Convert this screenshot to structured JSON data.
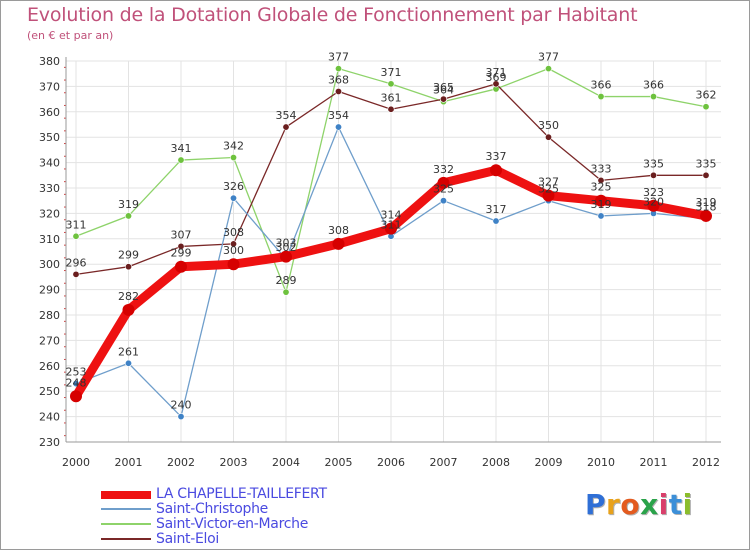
{
  "header": {
    "title": "Evolution de la Dotation Globale de Fonctionnement par Habitant",
    "subtitle": "(en € et par an)"
  },
  "brand": {
    "letters": [
      "P",
      "r",
      "o",
      "x",
      "i",
      "t",
      "i"
    ],
    "colors": [
      "#2f6fd6",
      "#e8a21c",
      "#e35b1f",
      "#2aa34a",
      "#d93f6b",
      "#3c8fd8",
      "#8bbd2c"
    ]
  },
  "chart_data": {
    "type": "line",
    "title": "Evolution de la Dotation Globale de Fonctionnement par Habitant",
    "subtitle": "(en € et par an)",
    "xlabel": "",
    "ylabel": "",
    "x": [
      "2000",
      "2001",
      "2002",
      "2003",
      "2004",
      "2005",
      "2006",
      "2007",
      "2008",
      "2009",
      "2010",
      "2011",
      "2012"
    ],
    "ylim": [
      230,
      380
    ],
    "yticks": [
      230,
      240,
      250,
      260,
      270,
      280,
      290,
      300,
      310,
      320,
      330,
      340,
      350,
      360,
      370,
      380
    ],
    "grid": true,
    "legend_position": "bottom-left",
    "series": [
      {
        "name": "Saint-Victor-en-Marche",
        "color": "#8ed36a",
        "marker": "#6ec23e",
        "values": [
          311,
          319,
          341,
          342,
          289,
          377,
          371,
          364,
          369,
          377,
          366,
          366,
          362
        ]
      },
      {
        "name": "Saint-Eloi",
        "color": "#7a2828",
        "marker": "#6a1e1e",
        "values": [
          296,
          299,
          307,
          308,
          354,
          368,
          361,
          365,
          371,
          350,
          333,
          335,
          335
        ]
      },
      {
        "name": "Saint-Christophe",
        "color": "#6f9ecb",
        "marker": "#3f82c6",
        "values": [
          253,
          261,
          240,
          326,
          302,
          354,
          311,
          325,
          317,
          325,
          319,
          320,
          318
        ]
      },
      {
        "name": "LA CHAPELLE-TAILLEFERT",
        "color": "#ee1111",
        "marker": "#d60000",
        "values": [
          248,
          282,
          299,
          300,
          303,
          308,
          314,
          332,
          337,
          327,
          325,
          323,
          319
        ]
      }
    ],
    "legend": [
      "LA CHAPELLE-TAILLEFERT",
      "Saint-Christophe",
      "Saint-Victor-en-Marche",
      "Saint-Eloi"
    ]
  }
}
